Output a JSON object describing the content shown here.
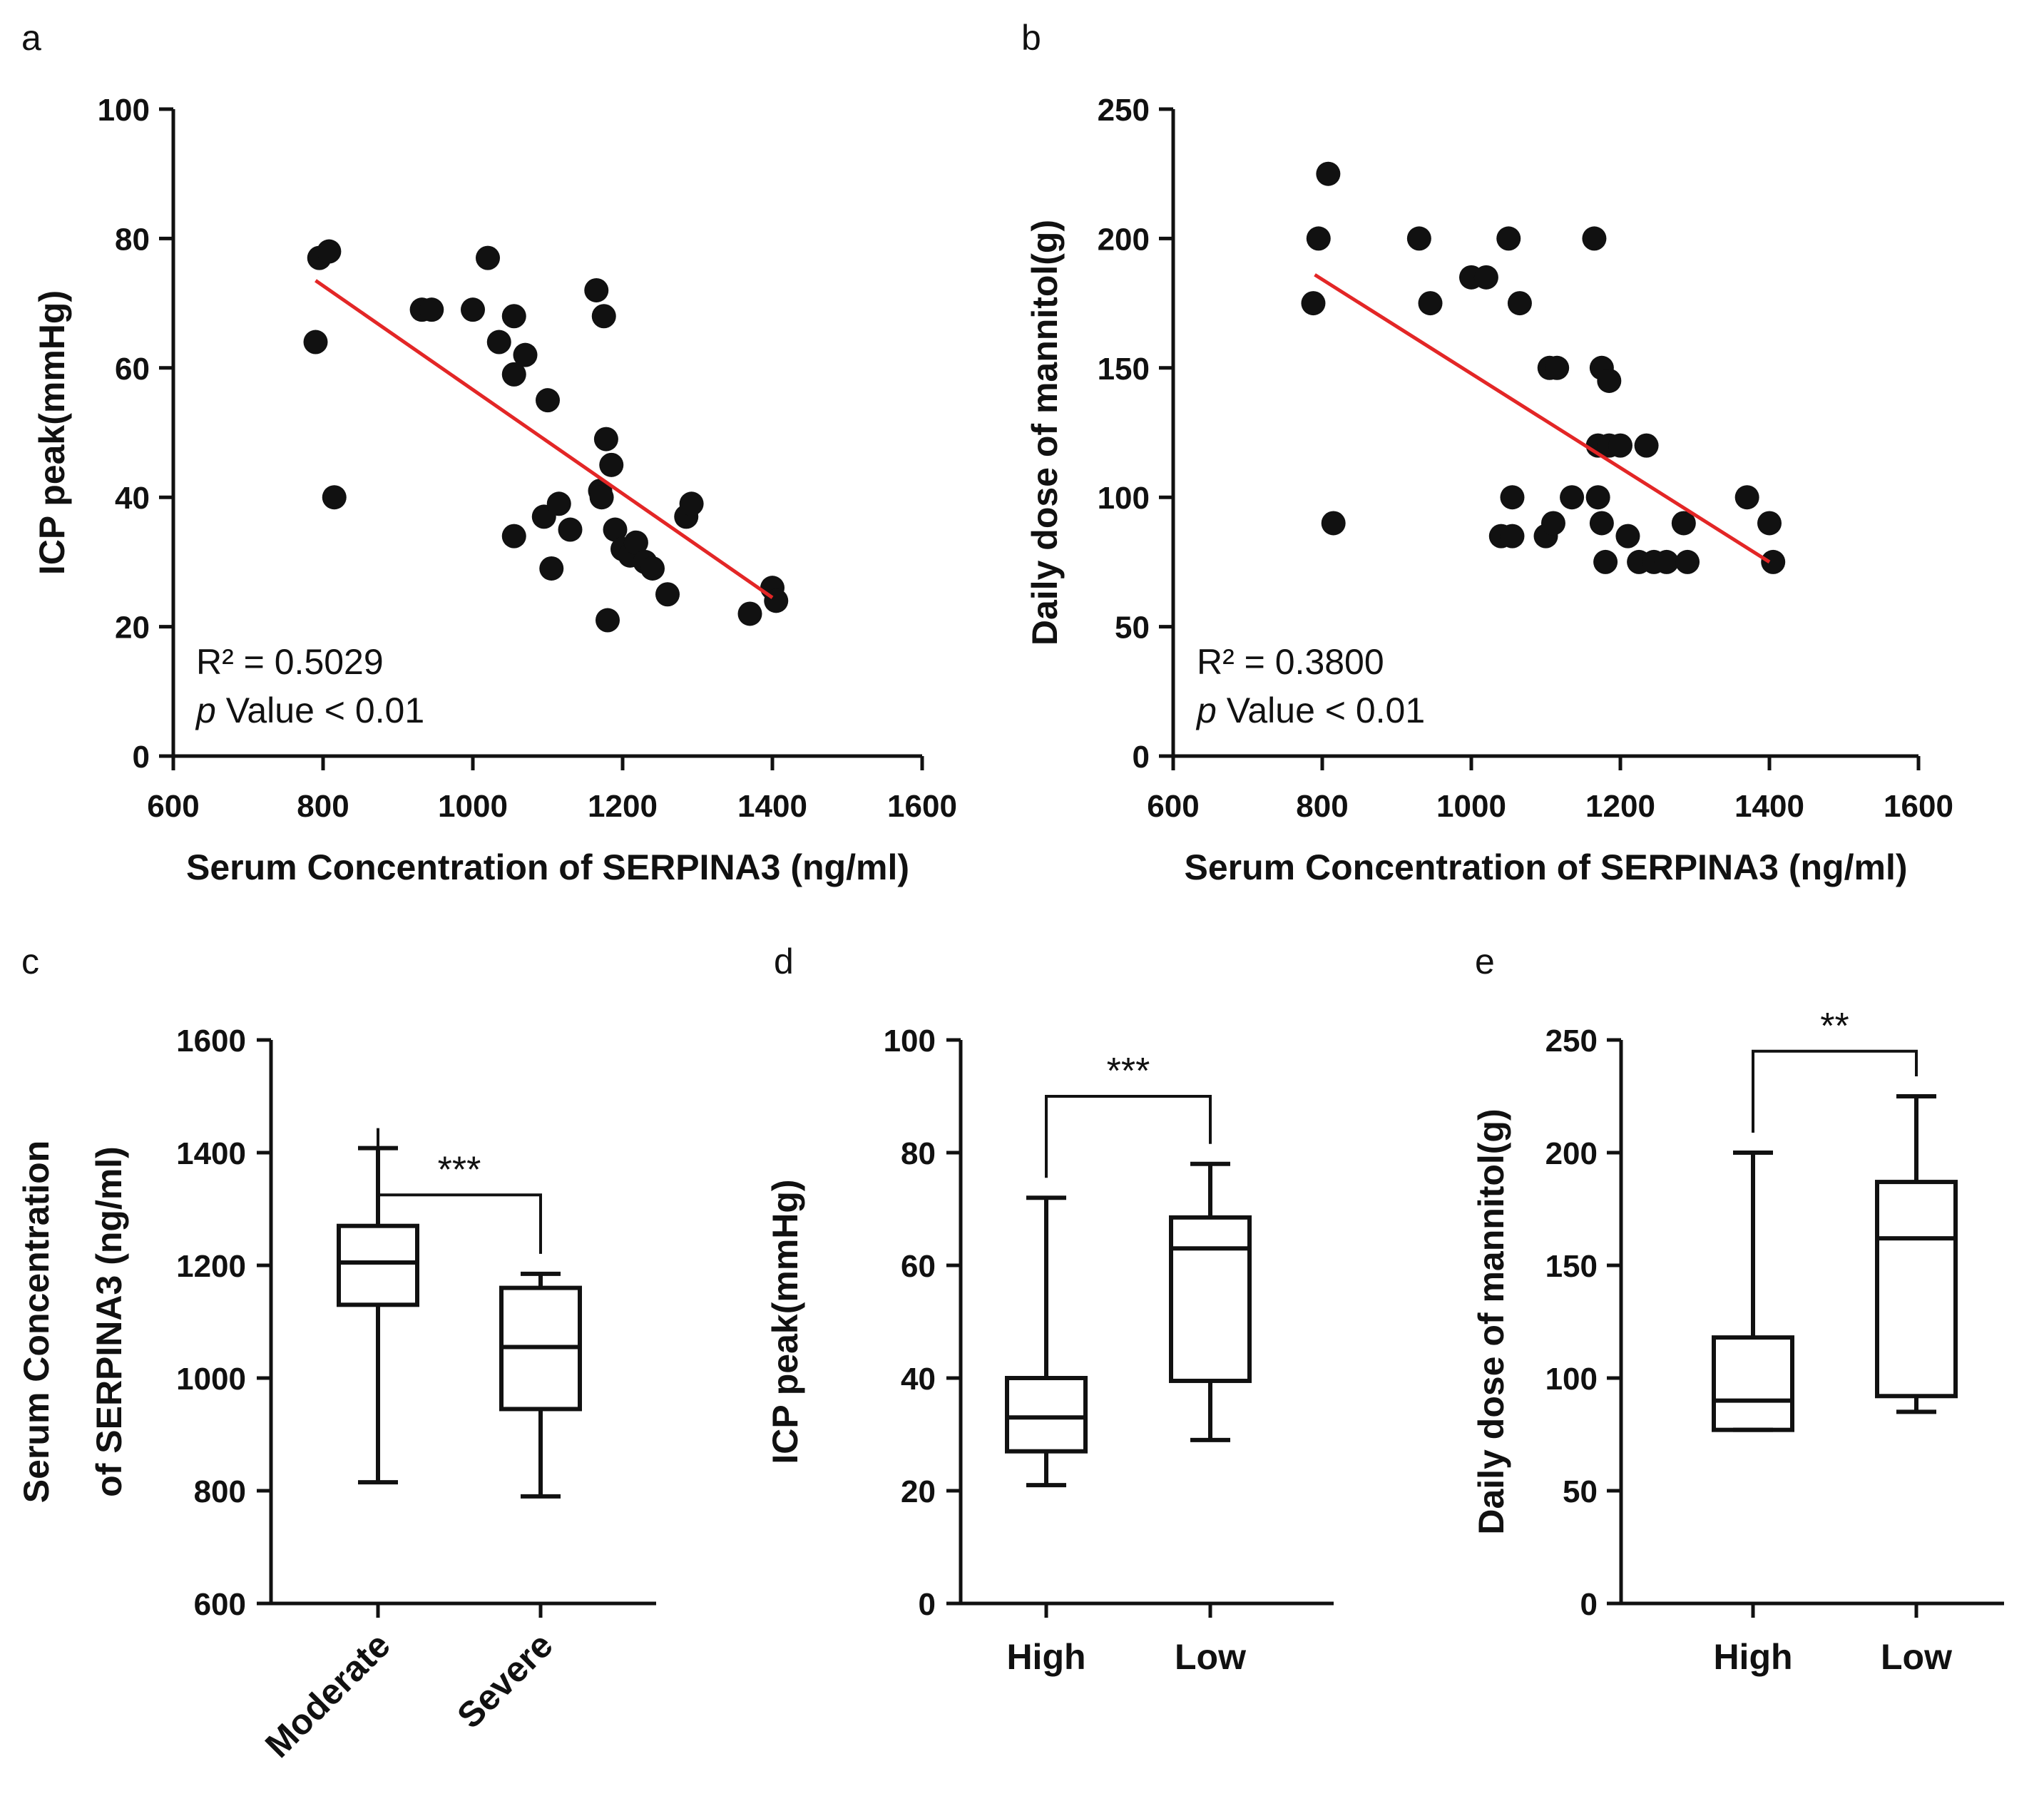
{
  "chart_data": [
    {
      "panel": "a",
      "type": "scatter",
      "xlabel": "Serum Concentration of SERPINA3 (ng/ml)",
      "ylabel": "ICP peak(mmHg)",
      "xlim": [
        600,
        1600
      ],
      "ylim": [
        0,
        100
      ],
      "xticks": [
        600,
        800,
        1000,
        1200,
        1400,
        1600
      ],
      "yticks": [
        0,
        20,
        40,
        60,
        80,
        100
      ],
      "annotation": {
        "r2": "R² = 0.5029",
        "p_italic": "p",
        "p_rest": " Value < 0.01"
      },
      "fit": {
        "x": [
          790,
          1400
        ],
        "y": [
          73.5,
          24.5
        ]
      },
      "points": [
        [
          790,
          64
        ],
        [
          795,
          77
        ],
        [
          808,
          78
        ],
        [
          815,
          40
        ],
        [
          932,
          69
        ],
        [
          945,
          69
        ],
        [
          1000,
          69
        ],
        [
          1020,
          77
        ],
        [
          1035,
          64
        ],
        [
          1055,
          68
        ],
        [
          1055,
          59
        ],
        [
          1070,
          62
        ],
        [
          1055,
          34
        ],
        [
          1100,
          55
        ],
        [
          1095,
          37
        ],
        [
          1105,
          29
        ],
        [
          1115,
          39
        ],
        [
          1130,
          35
        ],
        [
          1165,
          72
        ],
        [
          1175,
          68
        ],
        [
          1170,
          41
        ],
        [
          1172,
          40
        ],
        [
          1178,
          49
        ],
        [
          1185,
          45
        ],
        [
          1190,
          35
        ],
        [
          1180,
          21
        ],
        [
          1200,
          32
        ],
        [
          1210,
          31
        ],
        [
          1218,
          33
        ],
        [
          1230,
          30
        ],
        [
          1240,
          29
        ],
        [
          1260,
          25
        ],
        [
          1285,
          37
        ],
        [
          1292,
          39
        ],
        [
          1370,
          22
        ],
        [
          1400,
          26
        ],
        [
          1405,
          24
        ]
      ]
    },
    {
      "panel": "b",
      "type": "scatter",
      "xlabel": "Serum Concentration of SERPINA3 (ng/ml)",
      "ylabel": "Daily dose of mannitol(g)",
      "xlim": [
        600,
        1600
      ],
      "ylim": [
        0,
        250
      ],
      "xticks": [
        600,
        800,
        1000,
        1200,
        1400,
        1600
      ],
      "yticks": [
        0,
        50,
        100,
        150,
        200,
        250
      ],
      "annotation": {
        "r2": "R² = 0.3800",
        "p_italic": "p",
        "p_rest": " Value < 0.01"
      },
      "fit": {
        "x": [
          790,
          1400
        ],
        "y": [
          186,
          75
        ]
      },
      "points": [
        [
          788,
          175
        ],
        [
          795,
          200
        ],
        [
          808,
          225
        ],
        [
          815,
          90
        ],
        [
          930,
          200
        ],
        [
          945,
          175
        ],
        [
          1000,
          185
        ],
        [
          1020,
          185
        ],
        [
          1050,
          200
        ],
        [
          1065,
          175
        ],
        [
          1105,
          150
        ],
        [
          1115,
          150
        ],
        [
          1165,
          200
        ],
        [
          1175,
          150
        ],
        [
          1185,
          145
        ],
        [
          1170,
          120
        ],
        [
          1185,
          120
        ],
        [
          1200,
          120
        ],
        [
          1235,
          120
        ],
        [
          1040,
          85
        ],
        [
          1055,
          85
        ],
        [
          1055,
          100
        ],
        [
          1100,
          85
        ],
        [
          1110,
          90
        ],
        [
          1135,
          100
        ],
        [
          1170,
          100
        ],
        [
          1175,
          90
        ],
        [
          1180,
          75
        ],
        [
          1210,
          85
        ],
        [
          1225,
          75
        ],
        [
          1245,
          75
        ],
        [
          1262,
          75
        ],
        [
          1285,
          90
        ],
        [
          1290,
          75
        ],
        [
          1370,
          100
        ],
        [
          1400,
          90
        ],
        [
          1405,
          75
        ]
      ]
    },
    {
      "panel": "c",
      "type": "box",
      "ylabel_lines": [
        "Serum Concentration",
        "of SERPINA3 (ng/ml)"
      ],
      "ylim": [
        600,
        1600
      ],
      "yticks": [
        600,
        800,
        1000,
        1200,
        1400,
        1600
      ],
      "categories": [
        "Moderate",
        "Severe"
      ],
      "rotated_labels": true,
      "boxes": [
        {
          "min": 815,
          "q1": 1130,
          "median": 1205,
          "q3": 1270,
          "max": 1408
        },
        {
          "min": 790,
          "q1": 945,
          "median": 1055,
          "q3": 1160,
          "max": 1185
        }
      ],
      "significance": {
        "label": "***",
        "y": 1325
      }
    },
    {
      "panel": "d",
      "type": "box",
      "ylabel": "ICP peak(mmHg)",
      "ylim": [
        0,
        100
      ],
      "yticks": [
        0,
        20,
        40,
        60,
        80,
        100
      ],
      "categories": [
        "High",
        "Low"
      ],
      "rotated_labels": false,
      "boxes": [
        {
          "min": 21,
          "q1": 27,
          "median": 33,
          "q3": 40,
          "max": 72
        },
        {
          "min": 29,
          "q1": 39.5,
          "median": 63,
          "q3": 68.5,
          "max": 78
        }
      ],
      "significance": {
        "label": "***",
        "y": 90
      }
    },
    {
      "panel": "e",
      "type": "box",
      "ylabel": "Daily dose of mannitol(g)",
      "ylim": [
        0,
        250
      ],
      "yticks": [
        0,
        50,
        100,
        150,
        200,
        250
      ],
      "categories": [
        "High",
        "Low"
      ],
      "rotated_labels": false,
      "boxes": [
        {
          "min": 77,
          "q1": 77,
          "median": 90,
          "q3": 118,
          "max": 200
        },
        {
          "min": 85,
          "q1": 92,
          "median": 162,
          "q3": 187,
          "max": 225
        }
      ],
      "significance": {
        "label": "**",
        "y": 245
      }
    }
  ],
  "colors": {
    "ink": "#111111",
    "fit": "#e32626"
  }
}
